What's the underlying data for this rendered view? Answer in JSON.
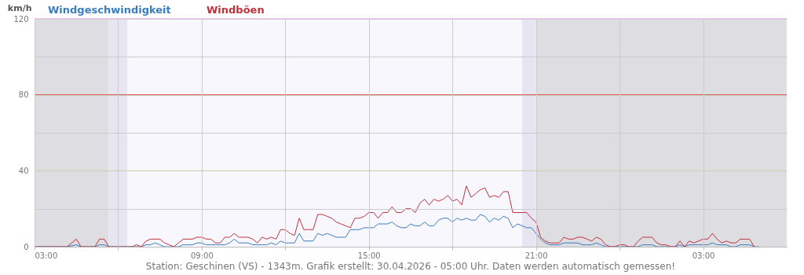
{
  "chart_data": {
    "type": "line",
    "ylabel": "km/h",
    "annotations": [
      "Station: Geschinen (VS) - 1343m. Grafik erstellt: 30.04.2026 - 05:00 Uhr. Daten werden automatisch gemessen!"
    ],
    "x": [
      "2026-04-29T03:00",
      "2026-04-29T04:10",
      "2026-04-29T04:30",
      "2026-04-29T04:40",
      "2026-04-29T05:10",
      "2026-04-29T05:20",
      "2026-04-29T05:30",
      "2026-04-29T05:40",
      "2026-04-29T06:30",
      "2026-04-29T06:40",
      "2026-04-29T06:50",
      "2026-04-29T07:00",
      "2026-04-29T07:10",
      "2026-04-29T07:20",
      "2026-04-29T07:30",
      "2026-04-29T07:40",
      "2026-04-29T07:50",
      "2026-04-29T08:00",
      "2026-04-29T08:10",
      "2026-04-29T08:20",
      "2026-04-29T08:30",
      "2026-04-29T08:40",
      "2026-04-29T08:50",
      "2026-04-29T09:00",
      "2026-04-29T09:10",
      "2026-04-29T09:20",
      "2026-04-29T09:30",
      "2026-04-29T09:40",
      "2026-04-29T09:50",
      "2026-04-29T10:00",
      "2026-04-29T10:10",
      "2026-04-29T10:20",
      "2026-04-29T10:30",
      "2026-04-29T10:40",
      "2026-04-29T10:50",
      "2026-04-29T11:00",
      "2026-04-29T11:10",
      "2026-04-29T11:20",
      "2026-04-29T11:30",
      "2026-04-29T11:40",
      "2026-04-29T11:50",
      "2026-04-29T12:00",
      "2026-04-29T12:10",
      "2026-04-29T12:20",
      "2026-04-29T12:30",
      "2026-04-29T12:40",
      "2026-04-29T12:50",
      "2026-04-29T13:00",
      "2026-04-29T13:10",
      "2026-04-29T13:20",
      "2026-04-29T13:30",
      "2026-04-29T13:40",
      "2026-04-29T13:50",
      "2026-04-29T14:00",
      "2026-04-29T14:10",
      "2026-04-29T14:20",
      "2026-04-29T14:30",
      "2026-04-29T14:40",
      "2026-04-29T14:50",
      "2026-04-29T15:00",
      "2026-04-29T15:10",
      "2026-04-29T15:20",
      "2026-04-29T15:30",
      "2026-04-29T15:40",
      "2026-04-29T15:50",
      "2026-04-29T16:00",
      "2026-04-29T16:10",
      "2026-04-29T16:20",
      "2026-04-29T16:30",
      "2026-04-29T16:40",
      "2026-04-29T16:50",
      "2026-04-29T17:00",
      "2026-04-29T17:10",
      "2026-04-29T17:20",
      "2026-04-29T17:30",
      "2026-04-29T17:40",
      "2026-04-29T17:50",
      "2026-04-29T18:00",
      "2026-04-29T18:10",
      "2026-04-29T18:20",
      "2026-04-29T18:30",
      "2026-04-29T18:40",
      "2026-04-29T18:50",
      "2026-04-29T19:00",
      "2026-04-29T19:10",
      "2026-04-29T19:20",
      "2026-04-29T19:30",
      "2026-04-29T19:40",
      "2026-04-29T19:50",
      "2026-04-29T20:00",
      "2026-04-29T20:10",
      "2026-04-29T20:20",
      "2026-04-29T20:30",
      "2026-04-29T20:40",
      "2026-04-29T20:50",
      "2026-04-29T21:00",
      "2026-04-29T21:10",
      "2026-04-29T21:20",
      "2026-04-29T21:30",
      "2026-04-29T21:40",
      "2026-04-29T21:50",
      "2026-04-29T22:00",
      "2026-04-29T22:10",
      "2026-04-29T22:20",
      "2026-04-29T22:30",
      "2026-04-29T22:40",
      "2026-04-29T22:50",
      "2026-04-29T23:00",
      "2026-04-29T23:10",
      "2026-04-29T23:20",
      "2026-04-29T23:30",
      "2026-04-29T23:40",
      "2026-04-29T23:50",
      "2026-04-30T00:00",
      "2026-04-30T00:10",
      "2026-04-30T00:20",
      "2026-04-30T00:30",
      "2026-04-30T00:40",
      "2026-04-30T00:50",
      "2026-04-30T01:00",
      "2026-04-30T01:10",
      "2026-04-30T01:20",
      "2026-04-30T01:30",
      "2026-04-30T01:40",
      "2026-04-30T01:50",
      "2026-04-30T02:00",
      "2026-04-30T02:10",
      "2026-04-30T02:20",
      "2026-04-30T02:30",
      "2026-04-30T02:40",
      "2026-04-30T02:50",
      "2026-04-30T03:00",
      "2026-04-30T03:10",
      "2026-04-30T03:20",
      "2026-04-30T03:30",
      "2026-04-30T03:40",
      "2026-04-30T03:50",
      "2026-04-30T04:00",
      "2026-04-30T04:10",
      "2026-04-30T04:20",
      "2026-04-30T04:30",
      "2026-04-30T04:40",
      "2026-04-30T04:50",
      "2026-04-30T05:00"
    ],
    "series": [
      {
        "name": "Windgeschwindigkeit",
        "color": "#3a7dbf",
        "values": [
          0,
          0,
          1,
          0,
          0,
          1,
          1,
          0,
          0,
          0,
          0,
          1,
          1,
          2,
          1,
          0,
          0,
          0,
          0,
          1,
          1,
          1,
          2,
          2,
          1,
          1,
          1,
          1,
          1,
          2,
          4,
          2,
          2,
          2,
          1,
          1,
          1,
          1,
          2,
          1,
          3,
          2,
          2,
          2,
          7,
          3,
          3,
          3,
          7,
          6,
          7,
          6,
          5,
          5,
          5,
          9,
          9,
          9,
          10,
          10,
          10,
          12,
          12,
          12,
          13,
          11,
          10,
          10,
          12,
          11,
          11,
          13,
          11,
          11,
          14,
          15,
          15,
          13,
          15,
          14,
          15,
          14,
          14,
          17,
          16,
          13,
          15,
          14,
          16,
          15,
          10,
          12,
          11,
          10,
          10,
          7,
          4,
          2,
          1,
          1,
          1,
          2,
          2,
          2,
          2,
          1,
          1,
          1,
          2,
          1,
          0,
          0,
          0,
          0,
          0,
          0,
          0,
          0,
          1,
          1,
          1,
          0,
          0,
          0,
          0,
          0,
          1,
          0,
          1,
          1,
          1,
          1,
          1,
          2,
          1,
          1,
          1,
          0,
          0,
          1,
          1,
          1,
          0,
          0
        ]
      },
      {
        "name": "Windböen",
        "color": "#c0323a",
        "values": [
          0,
          0,
          4,
          0,
          0,
          4,
          4,
          0,
          0,
          1,
          0,
          3,
          4,
          4,
          4,
          2,
          1,
          0,
          2,
          4,
          4,
          4,
          5,
          5,
          4,
          4,
          2,
          2,
          5,
          5,
          7,
          5,
          5,
          5,
          4,
          2,
          5,
          4,
          5,
          4,
          9,
          9,
          7,
          6,
          15,
          9,
          9,
          9,
          17,
          17,
          16,
          15,
          13,
          12,
          11,
          10,
          15,
          15,
          16,
          18,
          18,
          15,
          18,
          18,
          21,
          18,
          18,
          20,
          20,
          18,
          23,
          25,
          22,
          25,
          24,
          25,
          27,
          24,
          25,
          22,
          32,
          26,
          28,
          30,
          31,
          26,
          27,
          26,
          29,
          29,
          18,
          18,
          18,
          18,
          15,
          13,
          5,
          3,
          2,
          2,
          2,
          5,
          4,
          4,
          5,
          5,
          4,
          3,
          5,
          4,
          1,
          0,
          0,
          1,
          1,
          0,
          0,
          3,
          5,
          5,
          5,
          2,
          1,
          1,
          0,
          0,
          3,
          0,
          3,
          2,
          3,
          4,
          4,
          7,
          4,
          2,
          3,
          2,
          2,
          4,
          4,
          4,
          0,
          null
        ]
      }
    ],
    "xlim": [
      "2026-04-29T03:00",
      "2026-04-30T06:00"
    ],
    "xticks": [
      {
        "value": "2026-04-29T03:00",
        "label": "03:00"
      },
      {
        "value": "2026-04-29T06:00",
        "label": null
      },
      {
        "value": "2026-04-29T09:00",
        "label": "09:00"
      },
      {
        "value": "2026-04-29T12:00",
        "label": null
      },
      {
        "value": "2026-04-29T15:00",
        "label": "15:00"
      },
      {
        "value": "2026-04-29T18:00",
        "label": null
      },
      {
        "value": "2026-04-29T21:00",
        "label": "21:00"
      },
      {
        "value": "2026-04-30T00:00",
        "label": null
      },
      {
        "value": "2026-04-30T03:00",
        "label": "03:00"
      }
    ],
    "ylim": [
      0,
      120
    ],
    "yticks": [
      0,
      {
        "value": 20,
        "label": null
      },
      40,
      {
        "value": 60,
        "label": null
      },
      80,
      {
        "value": 100,
        "label": null
      },
      120
    ],
    "grid": true,
    "legend": "top",
    "ref_lines": [
      {
        "axis": "y",
        "value": 40,
        "color": "#f5f200"
      },
      {
        "axis": "y",
        "value": 80,
        "color": "#d9482a"
      },
      {
        "axis": "y",
        "value": 120,
        "color": "#ee82ee"
      }
    ],
    "bands": [
      {
        "axis": "x",
        "from": "2026-04-29T03:00",
        "to": "2026-04-29T05:40",
        "color": "#dedde2"
      },
      {
        "axis": "x",
        "from": "2026-04-29T05:40",
        "to": "2026-04-29T06:20",
        "color": "#e8e5f3"
      },
      {
        "axis": "x",
        "from": "2026-04-29T06:20",
        "to": "2026-04-29T20:30",
        "color": "#f9f7fe"
      },
      {
        "axis": "x",
        "from": "2026-04-29T20:30",
        "to": "2026-04-29T21:00",
        "color": "#e8e5f3"
      },
      {
        "axis": "x",
        "from": "2026-04-29T21:00",
        "to": "2026-04-30T06:00",
        "color": "#dedde2"
      }
    ]
  }
}
